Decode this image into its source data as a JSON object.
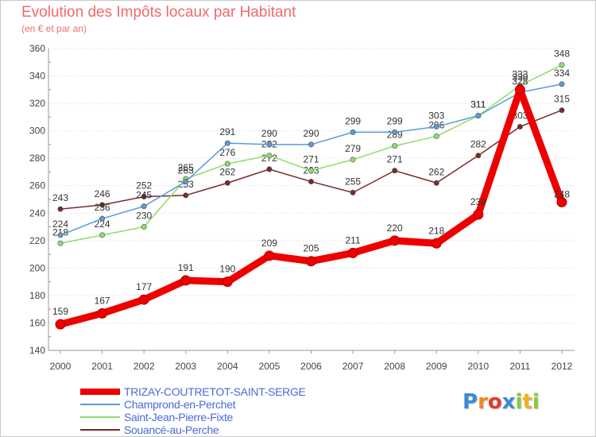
{
  "header": {
    "title": "Evolution des Impôts locaux par Habitant",
    "subtitle": "(en € et par an)"
  },
  "chart_data": {
    "type": "line",
    "title": "Evolution des Impôts locaux par Habitant",
    "subtitle": "(en € et par an)",
    "xlabel": "",
    "ylabel": "",
    "ylim": [
      140,
      360
    ],
    "yticks": [
      140,
      160,
      180,
      200,
      220,
      240,
      260,
      280,
      300,
      320,
      340,
      360
    ],
    "grid": "horizontal-dotted",
    "categories": [
      "2000",
      "2001",
      "2002",
      "2003",
      "2004",
      "2005",
      "2006",
      "2007",
      "2008",
      "2009",
      "2010",
      "2011",
      "2012"
    ],
    "series": [
      {
        "name": "Souancé-au-Perche",
        "color": "#7a2a2a",
        "values": [
          243,
          246,
          252,
          253,
          262,
          272,
          263,
          255,
          271,
          262,
          282,
          303,
          315
        ],
        "label_dy": [
          -10,
          -10,
          -10,
          -10,
          -10,
          -10,
          -10,
          -10,
          -10,
          -10,
          -10,
          -10,
          -10
        ]
      },
      {
        "name": "Saint-Jean-Pierre-Fixte",
        "color": "#8fdc6a",
        "values": [
          218,
          224,
          230,
          265,
          276,
          282,
          271,
          279,
          289,
          296,
          311,
          333,
          348
        ],
        "label_dy": [
          -10,
          -10,
          -10,
          -10,
          -10,
          -10,
          -10,
          -10,
          -10,
          -10,
          -10,
          -10,
          -10
        ]
      },
      {
        "name": "Champrond-en-Perchet",
        "color": "#5a9ad8",
        "values": [
          224,
          236,
          245,
          263,
          291,
          290,
          290,
          299,
          299,
          303,
          311,
          328,
          334
        ],
        "label_dy": [
          -10,
          -10,
          -10,
          -10,
          -10,
          -10,
          -10,
          -10,
          -10,
          -10,
          -10,
          -10,
          -10
        ]
      },
      {
        "name": "TRIZAY-COUTRETOT-SAINT-SERGE",
        "color": "#ee0000",
        "values": [
          159,
          167,
          177,
          191,
          190,
          209,
          205,
          211,
          220,
          218,
          239,
          330,
          248
        ],
        "label_dy": [
          -12,
          -12,
          -12,
          -12,
          -12,
          -12,
          -12,
          -12,
          -12,
          -12,
          -12,
          -12,
          -6
        ]
      }
    ]
  },
  "legend": {
    "items": [
      {
        "label": "TRIZAY-COUTRETOT-SAINT-SERGE",
        "color": "#ee0000"
      },
      {
        "label": "Champrond-en-Perchet",
        "color": "#5a9ad8"
      },
      {
        "label": "Saint-Jean-Pierre-Fixte",
        "color": "#8fdc6a"
      },
      {
        "label": "Souancé-au-Perche",
        "color": "#7a2a2a"
      }
    ]
  },
  "logo": {
    "text": "Proxiti",
    "letters": [
      {
        "ch": "P",
        "color": "#3a8ad8"
      },
      {
        "ch": "r",
        "color": "#f08a1a"
      },
      {
        "ch": "o",
        "color": "#e23a2a"
      },
      {
        "ch": "x",
        "color": "#3a8ad8"
      },
      {
        "ch": "i",
        "color": "#8ac83a"
      },
      {
        "ch": "t",
        "color": "#f0b020"
      },
      {
        "ch": "i",
        "color": "#8ac83a"
      }
    ]
  }
}
